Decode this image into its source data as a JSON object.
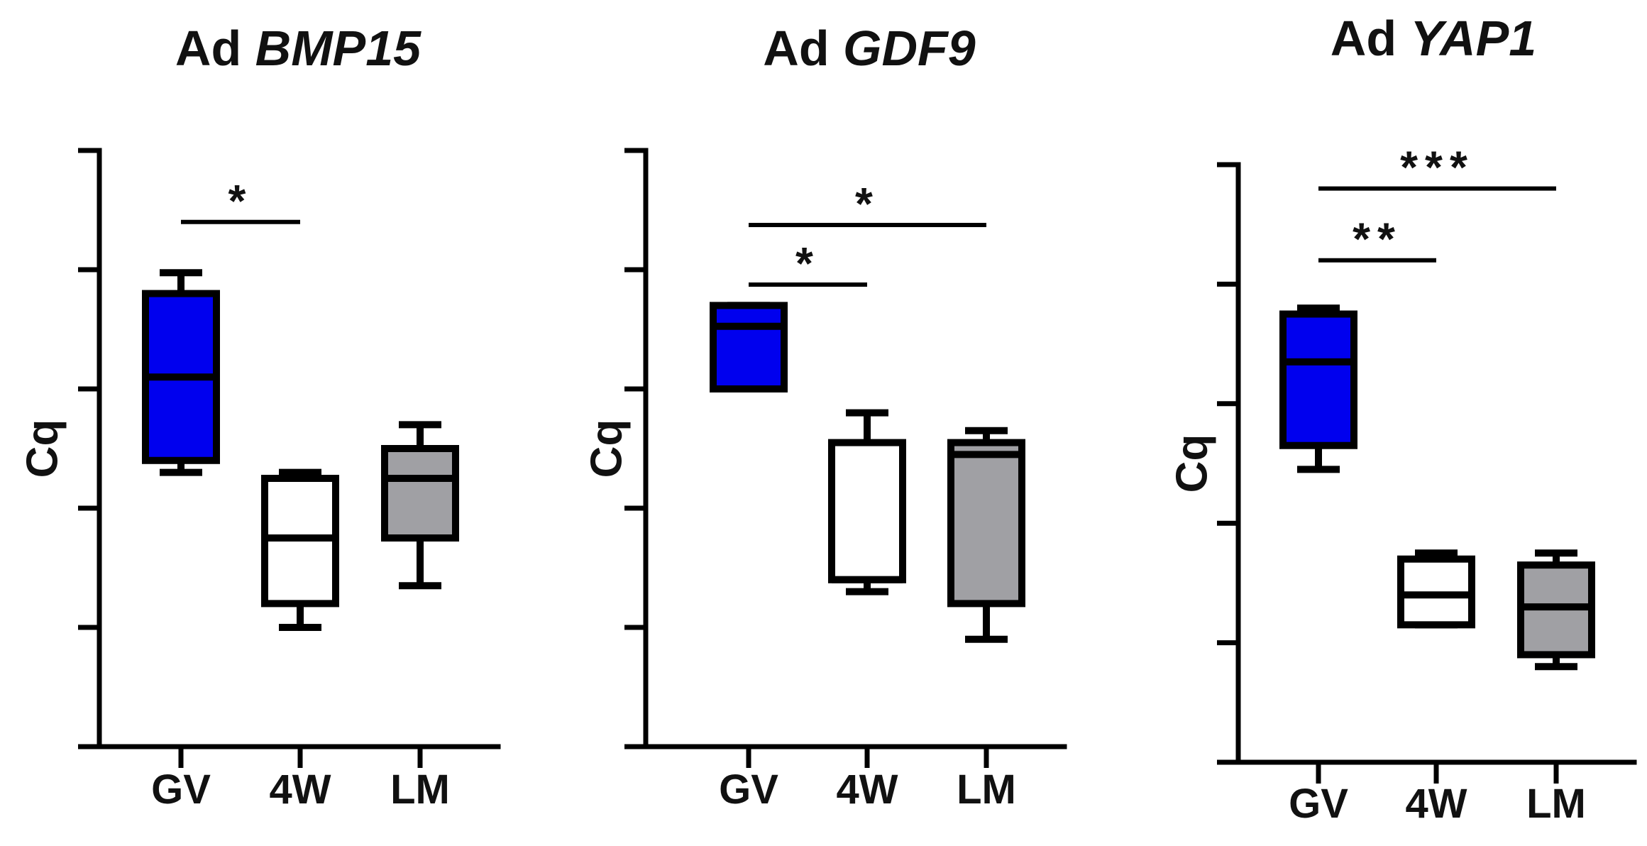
{
  "chart_data": [
    {
      "type": "box",
      "title_prefix": "Ad",
      "title_gene": "BMP15",
      "ylabel": "Cq",
      "ylim": [
        0,
        10
      ],
      "yticks": [
        0,
        2,
        4,
        6,
        8,
        10
      ],
      "categories": [
        "GV",
        "4W",
        "LM"
      ],
      "boxes": [
        {
          "category": "GV",
          "min": 4.6,
          "q1": 4.8,
          "median": 6.2,
          "q3": 7.6,
          "max": 7.95,
          "color": "#0000ee"
        },
        {
          "category": "4W",
          "min": 2.0,
          "q1": 2.4,
          "median": 3.5,
          "q3": 4.5,
          "max": 4.6,
          "color": "#ffffff"
        },
        {
          "category": "LM",
          "min": 2.7,
          "q1": 3.5,
          "median": 4.5,
          "q3": 5.0,
          "max": 5.4,
          "color": "#a0a0a4"
        }
      ],
      "significance": [
        {
          "from": "GV",
          "to": "4W",
          "label": "*",
          "y": 8.8
        }
      ]
    },
    {
      "type": "box",
      "title_prefix": "Ad",
      "title_gene": "GDF9",
      "ylabel": "Cq",
      "ylim": [
        0,
        10
      ],
      "yticks": [
        0,
        2,
        4,
        6,
        8,
        10
      ],
      "categories": [
        "GV",
        "4W",
        "LM"
      ],
      "boxes": [
        {
          "category": "GV",
          "min": 6.0,
          "q1": 6.0,
          "median": 7.05,
          "q3": 7.4,
          "max": 7.4,
          "color": "#0000ee"
        },
        {
          "category": "4W",
          "min": 2.6,
          "q1": 2.8,
          "median": 2.8,
          "q3": 5.1,
          "max": 5.6,
          "color": "#ffffff"
        },
        {
          "category": "LM",
          "min": 1.8,
          "q1": 2.4,
          "median": 4.9,
          "q3": 5.1,
          "max": 5.3,
          "color": "#a0a0a4"
        }
      ],
      "significance": [
        {
          "from": "GV",
          "to": "4W",
          "label": "*",
          "y": 7.75
        },
        {
          "from": "GV",
          "to": "LM",
          "label": "*",
          "y": 8.75
        }
      ]
    },
    {
      "type": "box",
      "title_prefix": "Ad",
      "title_gene": "YAP1",
      "ylabel": "Cq",
      "ylim": [
        0,
        10
      ],
      "yticks": [
        0,
        2,
        4,
        6,
        8,
        10
      ],
      "categories": [
        "GV",
        "4W",
        "LM"
      ],
      "boxes": [
        {
          "category": "GV",
          "min": 4.9,
          "q1": 5.3,
          "median": 6.7,
          "q3": 7.5,
          "max": 7.6,
          "color": "#0000ee"
        },
        {
          "category": "4W",
          "min": 2.3,
          "q1": 2.3,
          "median": 2.8,
          "q3": 3.4,
          "max": 3.5,
          "color": "#ffffff"
        },
        {
          "category": "LM",
          "min": 1.6,
          "q1": 1.8,
          "median": 2.6,
          "q3": 3.3,
          "max": 3.5,
          "color": "#a0a0a4"
        }
      ],
      "significance": [
        {
          "from": "GV",
          "to": "4W",
          "label": "**",
          "y": 8.4
        },
        {
          "from": "GV",
          "to": "LM",
          "label": "***",
          "y": 9.6
        }
      ]
    }
  ]
}
